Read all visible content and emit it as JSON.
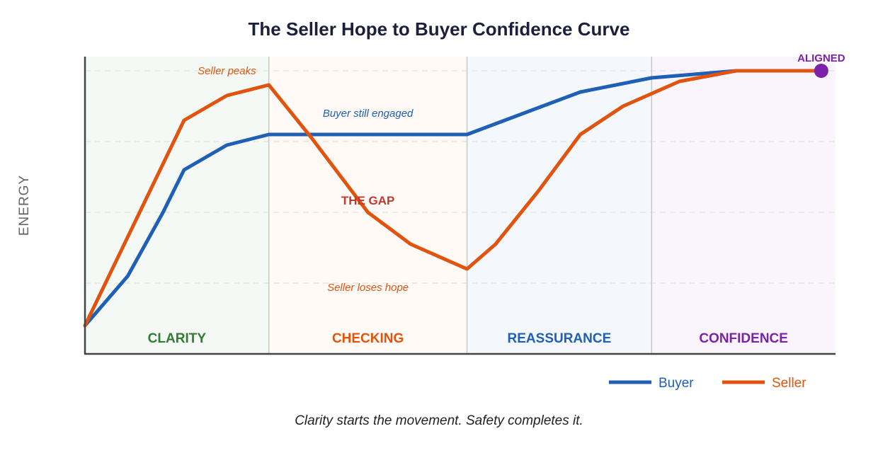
{
  "chart_data": {
    "type": "line",
    "title": "The Seller Hope to Buyer Confidence Curve",
    "ylabel": "ENERGY",
    "xlabel": "",
    "xlim": [
      0,
      100
    ],
    "ylim": [
      0,
      100
    ],
    "grid": true,
    "legend_position": "bottom-right",
    "phases": [
      {
        "label": "CLARITY",
        "start": 0,
        "end": 24.5,
        "color": "#2e7d32",
        "bg": "#f4f9f5"
      },
      {
        "label": "CHECKING",
        "start": 24.5,
        "end": 50.9,
        "color": "#e0540f",
        "bg": "#fffaf5"
      },
      {
        "label": "REASSURANCE",
        "start": 50.9,
        "end": 75.5,
        "color": "#1f5fb5",
        "bg": "#f4f8fc"
      },
      {
        "label": "CONFIDENCE",
        "start": 75.5,
        "end": 100,
        "color": "#7b22a8",
        "bg": "#faf5fc"
      }
    ],
    "series": [
      {
        "name": "Buyer",
        "color": "#1f5fb5",
        "x": [
          0,
          5.7,
          10.4,
          13.2,
          18.9,
          24.5,
          50.9,
          66,
          75.5,
          86.8,
          98.1
        ],
        "y": [
          10,
          27.5,
          50,
          65,
          73.75,
          77.5,
          77.5,
          92.5,
          97.5,
          100,
          100
        ]
      },
      {
        "name": "Seller",
        "color": "#e0540f",
        "x": [
          0,
          13.2,
          18.9,
          24.5,
          30.2,
          37.7,
          43.4,
          50.9,
          54.7,
          60.4,
          66,
          71.7,
          79.2,
          86.8,
          98.1
        ],
        "y": [
          10,
          82.5,
          91.25,
          95,
          76.25,
          50,
          38.75,
          30,
          38.75,
          57.5,
          77.5,
          87.5,
          96.25,
          100,
          100
        ]
      }
    ],
    "annotations": [
      {
        "text": "Seller peaks",
        "x": 18.9,
        "y": 100,
        "color": "#e0540f",
        "style": "italic"
      },
      {
        "text": "Buyer still engaged",
        "x": 37.7,
        "y": 85,
        "color": "#1f5fb5",
        "style": "italic"
      },
      {
        "text": "THE GAP",
        "x": 37.7,
        "y": 54,
        "color": "#c0392b",
        "style": "bold"
      },
      {
        "text": "Seller loses hope",
        "x": 37.7,
        "y": 23.5,
        "color": "#e0540f",
        "style": "italic"
      },
      {
        "text": "ALIGNED",
        "x": 98.1,
        "y": 104.5,
        "color": "#7b22a8",
        "style": "bold"
      }
    ],
    "end_marker": {
      "x": 98.1,
      "y": 100,
      "color": "#7b22a8"
    }
  },
  "caption": "Clarity starts the movement. Safety completes it."
}
